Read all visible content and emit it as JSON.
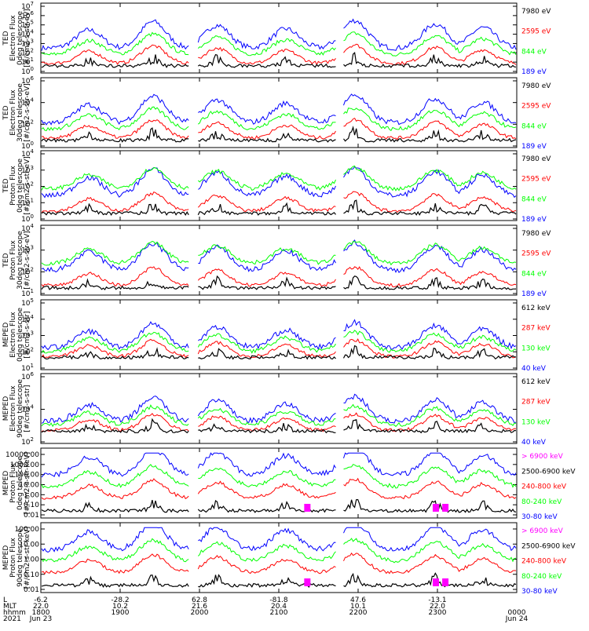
{
  "colors": {
    "blue": "#0000ff",
    "red": "#ff0000",
    "green": "#00ff00",
    "black": "#000000",
    "magenta": "#ff00ff"
  },
  "footer": {
    "row_labels": [
      "L",
      "MLT",
      "hhmm",
      "2021"
    ],
    "tick_values": [
      {
        "L": "-6.2",
        "MLT": "22.0",
        "hhmm": "1800",
        "date": "Jun 23"
      },
      {
        "L": "-28.2",
        "MLT": "10.2",
        "hhmm": "1900",
        "date": ""
      },
      {
        "L": "62.8",
        "MLT": "21.6",
        "hhmm": "2000",
        "date": ""
      },
      {
        "L": "-81.8",
        "MLT": "20.4",
        "hhmm": "2100",
        "date": ""
      },
      {
        "L": "47.6",
        "MLT": "10.1",
        "hhmm": "2200",
        "date": ""
      },
      {
        "L": "-13.1",
        "MLT": "22.0",
        "hhmm": "2300",
        "date": ""
      },
      {
        "L": "",
        "MLT": "",
        "hhmm": "0000",
        "date": "Jun 24"
      }
    ]
  },
  "chart_data": [
    {
      "type": "line",
      "panel": "TED 0deg electron flux",
      "ylabel_lines": [
        "TED",
        "Electron Flux",
        "0deg telescope",
        "[#/cm2-s-str-eV]"
      ],
      "yscale": "log",
      "ylim": [
        1,
        10000000
      ],
      "ytick_labels": [
        "10^0",
        "10^1",
        "10^2",
        "10^3",
        "10^4",
        "10^5",
        "10^6",
        "10^7"
      ],
      "xlim": [
        "1800",
        "0000"
      ],
      "series": [
        {
          "name": "7980 eV",
          "color": "black"
        },
        {
          "name": "2595 eV",
          "color": "red"
        },
        {
          "name": "844 eV",
          "color": "green"
        },
        {
          "name": "189 eV",
          "color": "blue"
        }
      ]
    },
    {
      "type": "line",
      "panel": "TED 30deg electron flux",
      "ylabel_lines": [
        "TED",
        "Electron Flux",
        "30deg telescope",
        "[#/cm2-s-str-eV]"
      ],
      "yscale": "log",
      "ylim": [
        1,
        10000000
      ],
      "ytick_labels": [
        "10^0",
        "10^2",
        "10^4",
        "10^6"
      ],
      "xlim": [
        "1800",
        "0000"
      ],
      "series": [
        {
          "name": "7980 eV",
          "color": "black"
        },
        {
          "name": "2595 eV",
          "color": "red"
        },
        {
          "name": "844 eV",
          "color": "green"
        },
        {
          "name": "189 eV",
          "color": "blue"
        }
      ]
    },
    {
      "type": "line",
      "panel": "TED 0deg proton flux",
      "ylabel_lines": [
        "TED",
        "Proton Flux",
        "0deg telescope",
        "[#/cm2-s-str-eV]"
      ],
      "yscale": "log",
      "ylim": [
        1,
        100000
      ],
      "ytick_labels": [
        "10^0",
        "10^1",
        "10^2",
        "10^3",
        "10^4"
      ],
      "xlim": [
        "1800",
        "0000"
      ],
      "series": [
        {
          "name": "7980 eV",
          "color": "black"
        },
        {
          "name": "2595 eV",
          "color": "red"
        },
        {
          "name": "844 eV",
          "color": "green"
        },
        {
          "name": "189 eV",
          "color": "blue"
        }
      ]
    },
    {
      "type": "line",
      "panel": "TED 30deg proton flux",
      "ylabel_lines": [
        "TED",
        "Proton Flux",
        "30deg telescope",
        "[#/cm2-s-str-eV]"
      ],
      "yscale": "log",
      "ylim": [
        1,
        100000
      ],
      "ytick_labels": [
        "10^1",
        "10^2",
        "10^3",
        "10^4"
      ],
      "xlim": [
        "1800",
        "0000"
      ],
      "series": [
        {
          "name": "7980 eV",
          "color": "black"
        },
        {
          "name": "2595 eV",
          "color": "red"
        },
        {
          "name": "844 eV",
          "color": "green"
        },
        {
          "name": "189 eV",
          "color": "blue"
        }
      ]
    },
    {
      "type": "line",
      "panel": "MEPED 0deg electron flux",
      "ylabel_lines": [
        "MEPED",
        "Electron Flux",
        "0deg telescope",
        "[#/cm2-s-str]"
      ],
      "yscale": "log",
      "ylim": [
        10,
        1000000
      ],
      "ytick_labels": [
        "10^1",
        "10^2",
        "10^3",
        "10^4",
        "10^5"
      ],
      "xlim": [
        "1800",
        "0000"
      ],
      "series": [
        {
          "name": "612 keV",
          "color": "black"
        },
        {
          "name": "287 keV",
          "color": "red"
        },
        {
          "name": "130 keV",
          "color": "green"
        },
        {
          "name": "40 keV",
          "color": "blue"
        }
      ]
    },
    {
      "type": "line",
      "panel": "MEPED 90deg electron flux",
      "ylabel_lines": [
        "MEPED",
        "Electron Flux",
        "90deg telescope",
        "[#/cm2-s-str]"
      ],
      "yscale": "log",
      "ylim": [
        10,
        1000000
      ],
      "ytick_labels": [
        "10^2",
        "10^4",
        "10^6"
      ],
      "xlim": [
        "1800",
        "0000"
      ],
      "series": [
        {
          "name": "612 keV",
          "color": "black"
        },
        {
          "name": "287 keV",
          "color": "red"
        },
        {
          "name": "130 keV",
          "color": "green"
        },
        {
          "name": "40 keV",
          "color": "blue"
        }
      ]
    },
    {
      "type": "line",
      "panel": "MEPED 0deg proton flux",
      "ylabel_lines": [
        "MEPED",
        "Proton Flux",
        "0deg telescope",
        "[#/cm2-s-str-keV]"
      ],
      "yscale": "log",
      "ylim": [
        0.01,
        10000
      ],
      "ytick_labels": [
        "10000.00",
        "1000.00",
        "100.00",
        "10.00",
        "1.00",
        "0.10",
        "0.01"
      ],
      "xlim": [
        "1800",
        "0000"
      ],
      "series": [
        {
          "name": "> 6900 keV",
          "color": "magenta"
        },
        {
          "name": "2500-6900 keV",
          "color": "black"
        },
        {
          "name": "240-800 keV",
          "color": "red"
        },
        {
          "name": "80-240 keV",
          "color": "green"
        },
        {
          "name": "30-80 keV",
          "color": "blue"
        }
      ]
    },
    {
      "type": "line",
      "panel": "MEPED 90deg proton flux",
      "ylabel_lines": [
        "MEPED",
        "Proton Flux",
        "90deg telescope",
        "[#/cm2-s-str-keV]"
      ],
      "yscale": "log",
      "ylim": [
        0.01,
        1000
      ],
      "ytick_labels": [
        "100.00",
        "10.00",
        "1.00",
        "0.10",
        "0.01"
      ],
      "xlim": [
        "1800",
        "0000"
      ],
      "series": [
        {
          "name": "> 6900 keV",
          "color": "magenta"
        },
        {
          "name": "2500-6900 keV",
          "color": "black"
        },
        {
          "name": "240-800 keV",
          "color": "red"
        },
        {
          "name": "80-240 keV",
          "color": "green"
        },
        {
          "name": "30-80 keV",
          "color": "blue"
        }
      ]
    }
  ]
}
